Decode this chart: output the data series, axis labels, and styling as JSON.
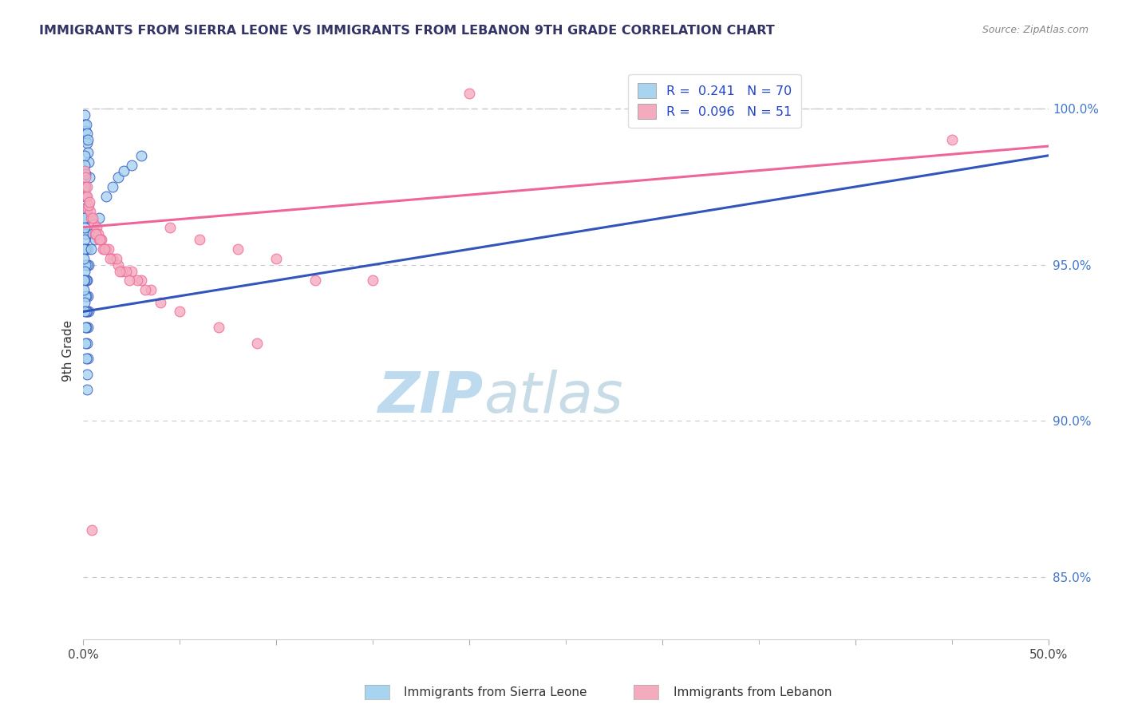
{
  "title": "IMMIGRANTS FROM SIERRA LEONE VS IMMIGRANTS FROM LEBANON 9TH GRADE CORRELATION CHART",
  "source": "Source: ZipAtlas.com",
  "ylabel": "9th Grade",
  "xlim": [
    0.0,
    50.0
  ],
  "ylim": [
    83.0,
    101.5
  ],
  "y_ticks": [
    85.0,
    90.0,
    95.0,
    100.0
  ],
  "y_tick_labels": [
    "85.0%",
    "90.0%",
    "95.0%",
    "100.0%"
  ],
  "color_sl": "#A8D4F0",
  "color_lb": "#F4ABBE",
  "trendline_sl_color": "#3355BB",
  "trendline_lb_color": "#EE6699",
  "dashed_line_color": "#C8C8C8",
  "dashed_y": 100.0,
  "watermark_zip": "ZIP",
  "watermark_atlas": "atlas",
  "watermark_color_zip": "#BDD9EE",
  "watermark_color_atlas": "#C8DAEA",
  "footer_label1": "Immigrants from Sierra Leone",
  "footer_label2": "Immigrants from Lebanon",
  "trendline_sl_x0": 0.0,
  "trendline_sl_y0": 93.5,
  "trendline_sl_x1": 50.0,
  "trendline_sl_y1": 98.5,
  "trendline_lb_x0": 0.0,
  "trendline_lb_y0": 96.2,
  "trendline_lb_x1": 50.0,
  "trendline_lb_y1": 98.8,
  "sierra_leone_x": [
    0.05,
    0.08,
    0.1,
    0.12,
    0.15,
    0.18,
    0.2,
    0.22,
    0.25,
    0.28,
    0.3,
    0.05,
    0.07,
    0.09,
    0.11,
    0.13,
    0.16,
    0.19,
    0.21,
    0.24,
    0.27,
    0.04,
    0.06,
    0.08,
    0.1,
    0.12,
    0.15,
    0.18,
    0.2,
    0.23,
    0.26,
    0.03,
    0.05,
    0.07,
    0.09,
    0.11,
    0.14,
    0.17,
    0.2,
    0.23,
    0.02,
    0.04,
    0.06,
    0.08,
    0.1,
    0.13,
    0.16,
    0.19,
    0.22,
    0.01,
    0.03,
    0.05,
    0.07,
    0.09,
    0.12,
    0.15,
    0.18,
    0.21,
    0.5,
    0.8,
    1.2,
    1.5,
    1.8,
    2.1,
    2.5,
    3.0,
    0.4,
    0.6
  ],
  "sierra_leone_y": [
    99.8,
    99.5,
    99.3,
    99.0,
    99.5,
    99.2,
    98.9,
    98.6,
    99.0,
    98.3,
    97.8,
    98.5,
    98.2,
    97.9,
    97.5,
    97.2,
    96.8,
    96.5,
    96.0,
    95.5,
    95.0,
    97.5,
    97.2,
    96.8,
    96.5,
    96.0,
    95.5,
    95.0,
    94.5,
    94.0,
    93.5,
    96.5,
    96.2,
    95.8,
    95.5,
    95.0,
    94.5,
    94.0,
    93.5,
    93.0,
    95.5,
    95.2,
    94.8,
    94.5,
    94.0,
    93.5,
    93.0,
    92.5,
    92.0,
    94.5,
    94.2,
    93.8,
    93.5,
    93.0,
    92.5,
    92.0,
    91.5,
    91.0,
    96.0,
    96.5,
    97.2,
    97.5,
    97.8,
    98.0,
    98.2,
    98.5,
    95.5,
    95.8
  ],
  "lebanon_x": [
    0.08,
    0.15,
    0.25,
    0.4,
    0.6,
    0.8,
    0.55,
    0.35,
    0.18,
    0.28,
    0.05,
    0.12,
    0.2,
    0.3,
    0.5,
    0.7,
    0.9,
    1.2,
    1.8,
    2.5,
    4.5,
    6.0,
    8.0,
    10.0,
    15.0,
    1.0,
    1.5,
    2.0,
    3.0,
    3.5,
    0.75,
    0.95,
    1.3,
    1.7,
    2.2,
    0.65,
    0.85,
    1.1,
    1.4,
    1.9,
    4.0,
    5.0,
    7.0,
    9.0,
    12.0,
    2.8,
    2.4,
    3.2,
    20.0,
    45.0,
    0.45
  ],
  "lebanon_y": [
    97.5,
    97.2,
    96.8,
    96.5,
    96.0,
    95.8,
    96.3,
    96.7,
    97.2,
    96.9,
    98.0,
    97.8,
    97.5,
    97.0,
    96.5,
    96.2,
    95.8,
    95.5,
    95.0,
    94.8,
    96.2,
    95.8,
    95.5,
    95.2,
    94.5,
    95.5,
    95.2,
    94.8,
    94.5,
    94.2,
    96.0,
    95.8,
    95.5,
    95.2,
    94.8,
    96.0,
    95.8,
    95.5,
    95.2,
    94.8,
    93.8,
    93.5,
    93.0,
    92.5,
    94.5,
    94.5,
    94.5,
    94.2,
    100.5,
    99.0,
    86.5
  ],
  "background_color": "#FFFFFF"
}
